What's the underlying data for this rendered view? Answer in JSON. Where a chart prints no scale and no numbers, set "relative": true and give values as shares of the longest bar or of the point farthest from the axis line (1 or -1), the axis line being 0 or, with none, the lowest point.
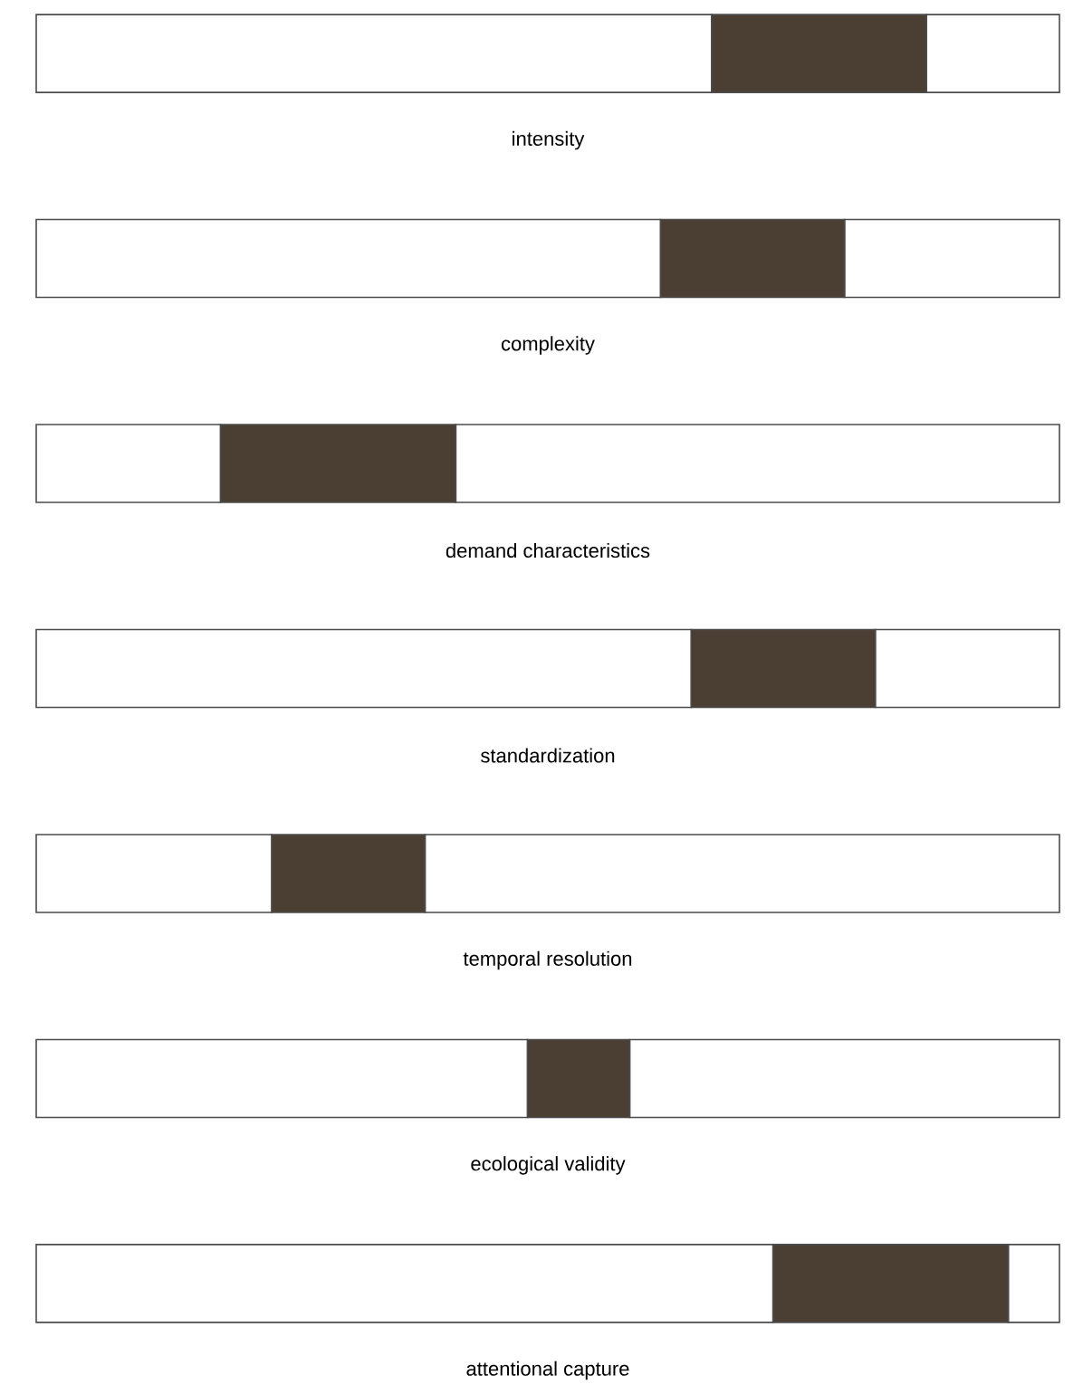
{
  "chart_data": {
    "type": "bar",
    "orientation": "horizontal",
    "stacked": true,
    "relative": true,
    "categories": [
      "intensity",
      "complexity",
      "demand characteristics",
      "standardization",
      "temporal resolution",
      "ecological validity",
      "attentional capture"
    ],
    "series": [
      {
        "color": "#ffffff",
        "values": [
          0.66,
          0.61,
          0.18,
          0.64,
          0.23,
          0.48,
          0.72
        ]
      },
      {
        "color": "#4a3f32",
        "values": [
          0.21,
          0.18,
          0.23,
          0.18,
          0.15,
          0.1,
          0.23
        ]
      },
      {
        "color": "#ffffff",
        "values": [
          0.13,
          0.21,
          0.59,
          0.18,
          0.62,
          0.42,
          0.05
        ]
      }
    ]
  }
}
